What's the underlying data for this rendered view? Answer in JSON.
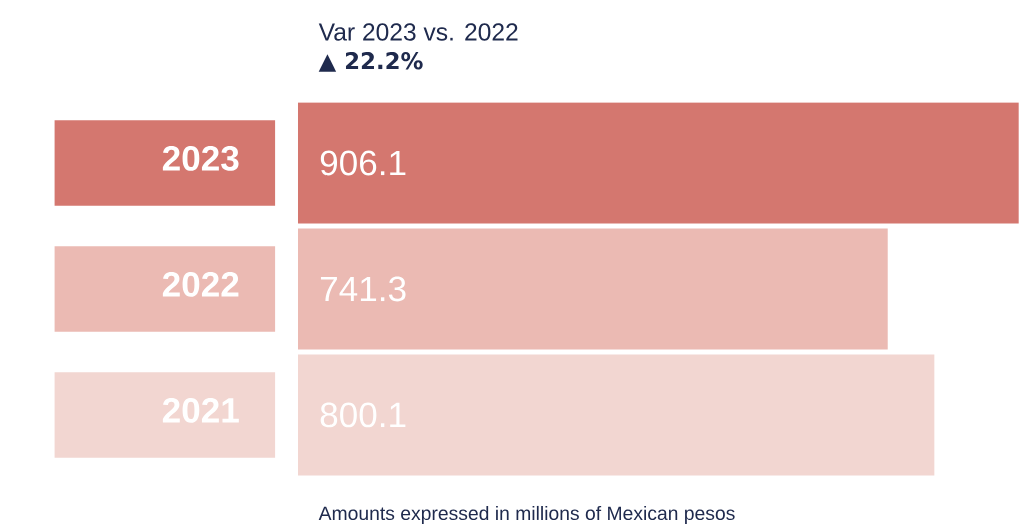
{
  "chart_data": {
    "type": "bar",
    "orientation": "horizontal",
    "title": "Var 2023 vs. 2022",
    "subtitle": "▲ 22.2%",
    "categories": [
      "2023",
      "2022",
      "2021"
    ],
    "values": [
      906.1,
      741.3,
      800.1
    ],
    "colors": [
      "#d4776f",
      "#ebbab3",
      "#f2d6d1"
    ],
    "data_labels": true,
    "annotations": [
      "Amounts expressed in millions of Mexican pesos"
    ]
  }
}
